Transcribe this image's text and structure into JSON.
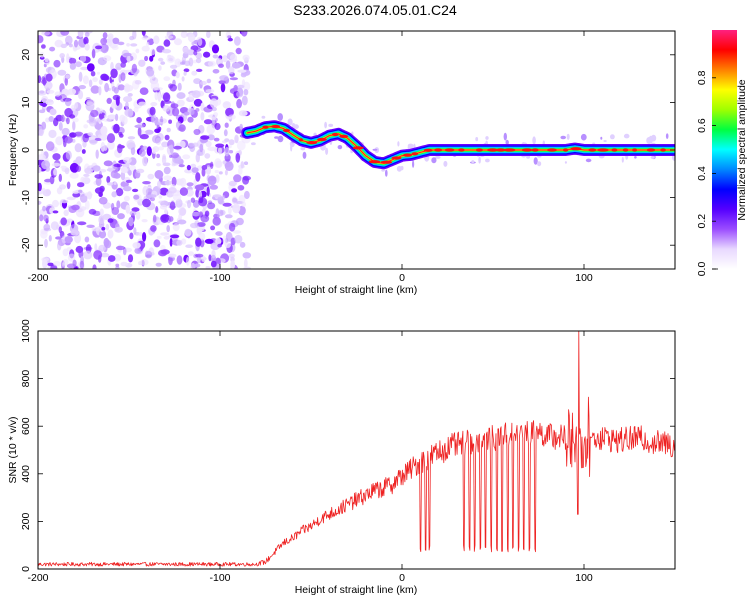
{
  "title": "S233.2026.074.05.01.C24",
  "chart_data": [
    {
      "type": "heatmap",
      "name": "spectrogram",
      "xlabel": "Height of straight line (km)",
      "ylabel": "Frequency (Hz)",
      "xlim": [
        -200,
        150
      ],
      "ylim": [
        -25,
        25
      ],
      "x_ticks": [
        -200,
        -100,
        0,
        100
      ],
      "y_ticks": [
        -20,
        -10,
        0,
        10,
        20
      ],
      "noise_region_x": [
        -200,
        -85
      ],
      "signal_start_x": -85,
      "signal_track": {
        "x": [
          -86,
          -80,
          -75,
          -70,
          -65,
          -60,
          -55,
          -50,
          -45,
          -40,
          -35,
          -30,
          -25,
          -20,
          -15,
          -10,
          -5,
          0,
          5,
          10,
          15,
          20,
          30,
          40,
          50,
          60,
          70,
          80,
          90,
          95,
          100,
          110,
          120,
          130,
          140,
          150
        ],
        "y": [
          3.5,
          4.0,
          4.8,
          5.0,
          4.5,
          3.2,
          2.0,
          1.5,
          2.0,
          3.0,
          3.4,
          2.5,
          0.8,
          -1.2,
          -2.5,
          -2.8,
          -2.0,
          -1.2,
          -1.0,
          -0.5,
          0.0,
          0.0,
          0.0,
          0.0,
          0.0,
          0.0,
          0.0,
          0.0,
          0.0,
          0.3,
          0.0,
          0.0,
          0.0,
          0.0,
          0.0,
          0.0
        ]
      },
      "colorbar": {
        "label": "Normalized spectral amplitude",
        "range": [
          0.0,
          1.0
        ],
        "ticks": [
          "0.0",
          "0.2",
          "0.4",
          "0.6",
          "0.8"
        ],
        "colors": [
          "#ffffff",
          "#e8d8ff",
          "#9b4dff",
          "#5500ff",
          "#0000ff",
          "#0088ff",
          "#00ffff",
          "#00ff40",
          "#a0ff00",
          "#ffff00",
          "#ff8000",
          "#ff0000",
          "#ff2080"
        ]
      }
    },
    {
      "type": "line",
      "name": "snr",
      "xlabel": "Height of straight line (km)",
      "ylabel": "SNR (10 * v/v)",
      "xlim": [
        -200,
        150
      ],
      "ylim": [
        0,
        1000
      ],
      "x_ticks": [
        -200,
        -100,
        0,
        100
      ],
      "y_ticks": [
        0,
        200,
        400,
        600,
        800,
        1000
      ],
      "color": "#ee2222",
      "series": [
        {
          "name": "SNR",
          "x": [
            -200,
            -180,
            -160,
            -140,
            -120,
            -100,
            -80,
            -75,
            -70,
            -65,
            -60,
            -55,
            -50,
            -45,
            -40,
            -35,
            -30,
            -25,
            -20,
            -15,
            -10,
            -5,
            0,
            5,
            10,
            15,
            20,
            25,
            30,
            35,
            40,
            45,
            50,
            55,
            60,
            65,
            70,
            75,
            80,
            85,
            90,
            95,
            100,
            105,
            110,
            115,
            120,
            125,
            130,
            135,
            140,
            145,
            150
          ],
          "values": [
            20,
            20,
            20,
            20,
            20,
            20,
            20,
            30,
            70,
            110,
            130,
            160,
            180,
            210,
            230,
            250,
            270,
            290,
            310,
            330,
            340,
            360,
            390,
            420,
            450,
            470,
            490,
            510,
            520,
            530,
            540,
            545,
            550,
            560,
            565,
            570,
            570,
            575,
            560,
            555,
            550,
            560,
            540,
            550,
            555,
            545,
            540,
            545,
            550,
            540,
            530,
            525,
            520
          ]
        }
      ],
      "dropouts_x": [
        10,
        13,
        15,
        34,
        37,
        40,
        43,
        46,
        49,
        52,
        55,
        58,
        61,
        64,
        67,
        70,
        73
      ],
      "dropout_min": 70,
      "peak": {
        "x": 97,
        "value": 1000
      },
      "dip": {
        "x": 96.5,
        "value": 230
      }
    }
  ]
}
